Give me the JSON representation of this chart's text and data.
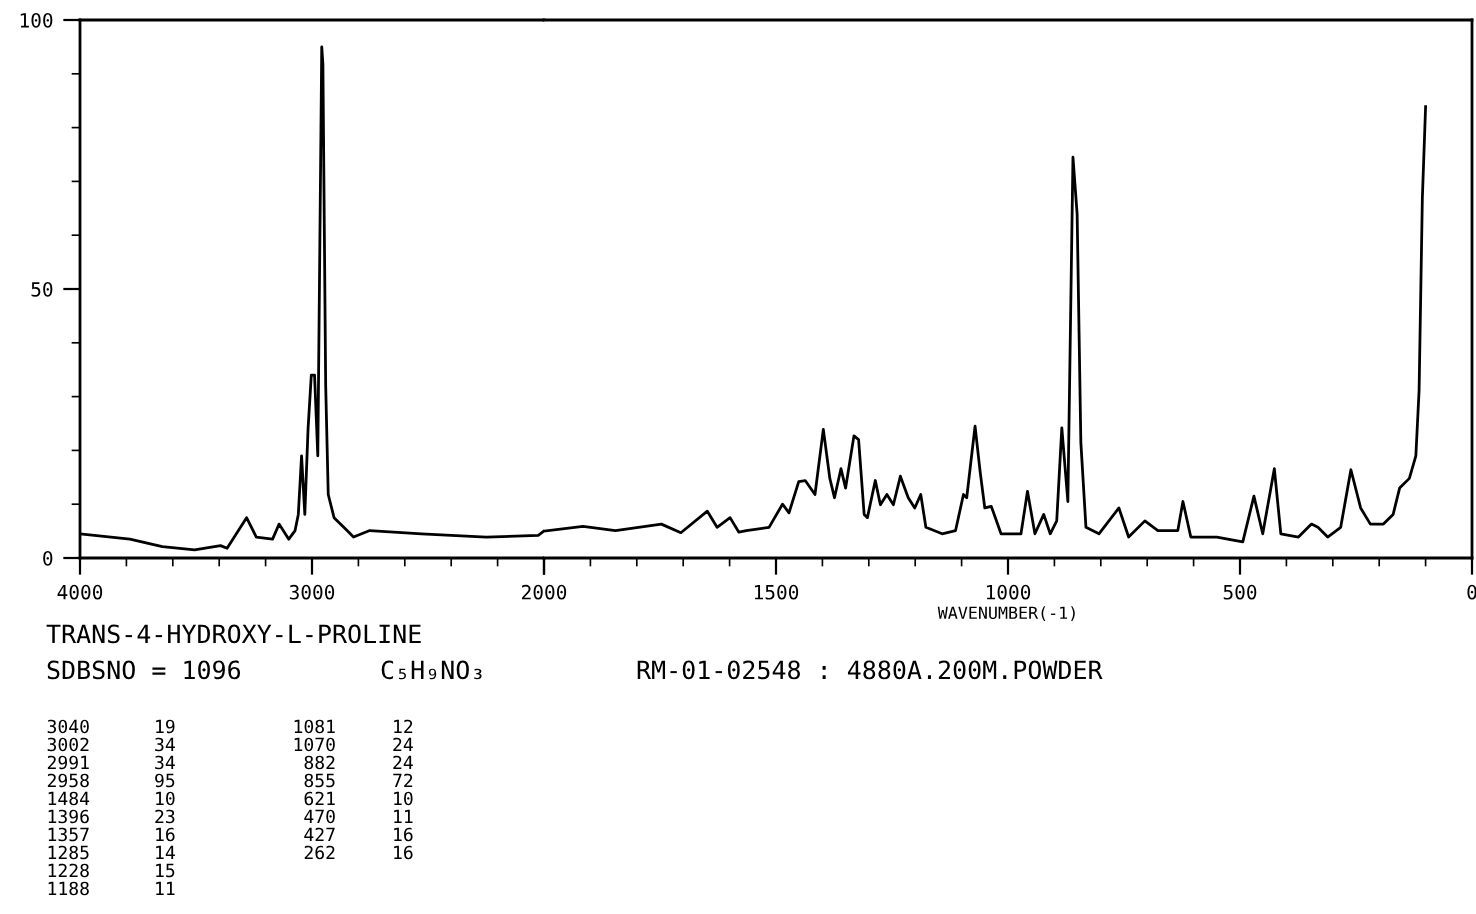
{
  "chart_data": [
    {
      "type": "line",
      "title": "TRANS-4-HYDROXY-L-PROLINE",
      "annotations": [
        "SDBSNO = 1096",
        "C₅H₉NO₃",
        "RM-01-02548 : 4880A.200M.POWDER",
        "3040",
        "19",
        "3002",
        "34",
        "2991",
        "34",
        "2958",
        "95",
        "1484",
        "10",
        "1396",
        "23",
        "1357",
        "16",
        "1285",
        "14",
        "1228",
        "15",
        "1188",
        "11",
        "1081",
        "12",
        "1070",
        "24",
        "882",
        "24",
        "855",
        "72",
        "621",
        "10",
        "470",
        "11",
        "427",
        "16",
        "262",
        "16"
      ],
      "xlim": [
        4000,
        2000
      ],
      "xticks": [
        4000,
        3000,
        2000
      ],
      "ylim": [
        0,
        100
      ],
      "yticks": [
        0,
        50,
        100
      ],
      "series": [
        {
          "color": "#000000",
          "x": [
            4000,
            3785,
            3645,
            3506,
            3394,
            3366,
            3282,
            3240,
            3170,
            3142,
            3100,
            3073,
            3059,
            3045,
            3031,
            3017,
            3003,
            2989,
            2975,
            2958,
            2953,
            2941,
            2930,
            2905,
            2863,
            2821,
            2751,
            2528,
            2249,
            2025,
            2000
          ],
          "values": [
            4.5,
            3.5,
            2.1,
            1.5,
            2.3,
            1.8,
            7.5,
            3.9,
            3.5,
            6.3,
            3.5,
            5.1,
            8.1,
            19,
            8.1,
            24,
            34,
            34,
            19,
            95,
            91.8,
            32,
            11.8,
            7.5,
            5.7,
            3.9,
            5.1,
            4.5,
            3.9,
            4.2,
            5.0
          ]
        }
      ]
    },
    {
      "type": "line",
      "xlabel": "WAVENUMBER(-1)",
      "xlim": [
        2000,
        0
      ],
      "xticks": [
        {
          "value": 2000,
          "label": null
        },
        1500,
        1000,
        500,
        0
      ],
      "ylim": [
        0,
        100
      ],
      "tick_labels": "x",
      "series": [
        {
          "color": "#000000",
          "x": [
            2000,
            1916,
            1846,
            1747,
            1705,
            1648,
            1627,
            1599,
            1580,
            1564,
            1515,
            1486,
            1472,
            1451,
            1437,
            1416,
            1398,
            1384,
            1374,
            1360,
            1350,
            1332,
            1322,
            1310,
            1303,
            1286,
            1275,
            1261,
            1247,
            1232,
            1215,
            1201,
            1188,
            1177,
            1142,
            1113,
            1096,
            1089,
            1071,
            1060,
            1050,
            1036,
            1015,
            972,
            958,
            942,
            923,
            909,
            895,
            884,
            871,
            860,
            851,
            843,
            832,
            804,
            761,
            740,
            705,
            677,
            634,
            623,
            606,
            550,
            494,
            470,
            451,
            426,
            412,
            374,
            346,
            332,
            311,
            283,
            261,
            240,
            219,
            191,
            170,
            156,
            135,
            121,
            114,
            107,
            100
          ],
          "values": [
            5.0,
            5.9,
            5.1,
            6.3,
            4.7,
            8.7,
            5.7,
            7.5,
            4.8,
            5.1,
            5.7,
            10,
            8.4,
            14.2,
            14.4,
            11.8,
            23.9,
            14.8,
            11.2,
            16.6,
            13,
            22.7,
            22,
            8.1,
            7.5,
            14.4,
            9.9,
            11.8,
            9.9,
            15.2,
            11.2,
            9.3,
            11.8,
            5.7,
            4.5,
            5.1,
            11.8,
            11.2,
            24.5,
            16,
            9.3,
            9.6,
            4.5,
            4.5,
            12.4,
            4.5,
            8.1,
            4.5,
            6.9,
            24.2,
            10.5,
            74.5,
            63.9,
            21.5,
            5.7,
            4.5,
            9.3,
            3.9,
            6.9,
            5.1,
            5.1,
            10.5,
            3.9,
            3.9,
            3.0,
            11.5,
            4.5,
            16.6,
            4.5,
            3.9,
            6.3,
            5.7,
            3.9,
            5.7,
            16.4,
            9.3,
            6.3,
            6.3,
            8.1,
            13,
            14.8,
            19,
            31.2,
            66.9,
            83.9
          ]
        }
      ]
    }
  ]
}
